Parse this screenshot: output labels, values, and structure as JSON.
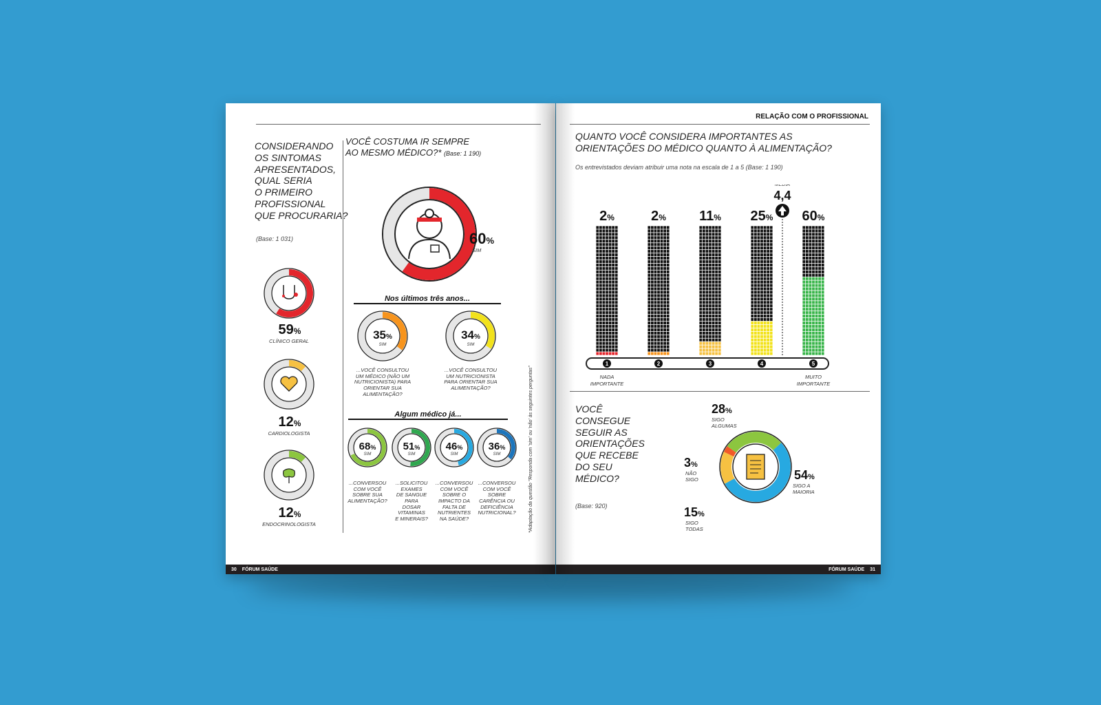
{
  "left_page": {
    "footer_page": "30",
    "footer_title": "FÓRUM SAÚDE",
    "q1": {
      "lines": [
        "CONSIDERANDO",
        "OS SINTOMAS",
        "APRESENTADOS,",
        "QUAL SERIA",
        "O PRIMEIRO",
        "PROFISSIONAL",
        "QUE PROCURARIA?"
      ],
      "base": "(Base: 1 031)"
    },
    "specialists": [
      {
        "value": "59",
        "unit": "%",
        "label": "CLÍNICO GERAL",
        "fraction": 0.59,
        "color": "#e3262c",
        "icon": "stethoscope-icon"
      },
      {
        "value": "12",
        "unit": "%",
        "label": "CARDIOLOGISTA",
        "fraction": 0.12,
        "color": "#f6c142",
        "icon": "heart-icon"
      },
      {
        "value": "12",
        "unit": "%",
        "label": "ENDOCRINOLOGISTA",
        "fraction": 0.12,
        "color": "#8cc63f",
        "icon": "thyroid-icon"
      }
    ],
    "q2": {
      "line1": "VOCÊ COSTUMA IR SEMPRE",
      "line2": "AO MESMO MÉDICO?*",
      "base": "(Base: 1 190)",
      "value": "60",
      "unit": "%",
      "label": "SIM",
      "fraction": 0.6,
      "color": "#e3262c",
      "icon": "doctor-icon"
    },
    "sub1": {
      "title": "Nos últimos três anos...",
      "items": [
        {
          "value": "35",
          "unit": "%",
          "label": "SIM",
          "fraction": 0.35,
          "color": "#f7941d",
          "caption": [
            "...VOCÊ CONSULTOU",
            "UM MÉDICO (NÃO UM",
            "NUTRICIONISTA) PARA",
            "ORIENTAR SUA ALIMENTAÇÃO?"
          ]
        },
        {
          "value": "34",
          "unit": "%",
          "label": "SIM",
          "fraction": 0.34,
          "color": "#f2e21b",
          "caption": [
            "...VOCÊ CONSULTOU",
            "UM NUTRICIONISTA",
            "PARA ORIENTAR SUA",
            "ALIMENTAÇÃO?"
          ]
        }
      ]
    },
    "sub2": {
      "title": "Algum médico já...",
      "items": [
        {
          "value": "68",
          "unit": "%",
          "label": "SIM",
          "fraction": 0.68,
          "color": "#8cc63f",
          "caption": [
            "...CONVERSOU",
            "COM VOCÊ",
            "SOBRE SUA",
            "ALIMENTAÇÃO?"
          ]
        },
        {
          "value": "51",
          "unit": "%",
          "label": "SIM",
          "fraction": 0.51,
          "color": "#2fa84f",
          "caption": [
            "...SOLICITOU",
            "EXAMES",
            "DE SANGUE",
            "PARA",
            "DOSAR",
            "VITAMINAS",
            "E MINERAIS?"
          ]
        },
        {
          "value": "46",
          "unit": "%",
          "label": "SIM",
          "fraction": 0.46,
          "color": "#27a9e1",
          "caption": [
            "...CONVERSOU",
            "COM VOCÊ",
            "SOBRE O",
            "IMPACTO DA",
            "FALTA DE",
            "NUTRIENTES",
            "NA SAÚDE?"
          ]
        },
        {
          "value": "36",
          "unit": "%",
          "label": "SIM",
          "fraction": 0.36,
          "color": "#1c75bc",
          "caption": [
            "...CONVERSOU",
            "COM VOCÊ",
            "SOBRE",
            "CARÊNCIA OU",
            "DEFICIÊNCIA",
            "NUTRICIONAL?"
          ]
        }
      ]
    },
    "side_note": "*Adaptação da questão \"Responda com 'sim' ou 'não' às seguintes perguntas\""
  },
  "right_page": {
    "section_tag": "RELAÇÃO COM O PROFISSIONAL",
    "footer_page": "31",
    "footer_title": "FÓRUM SAÚDE",
    "q3": {
      "line1": "QUANTO VOCÊ CONSIDERA IMPORTANTES AS",
      "line2": "ORIENTAÇÕES DO MÉDICO QUANTO À ALIMENTAÇÃO?",
      "sub": "Os entrevistados deviam atribuir uma nota na escala de 1 a 5 (Base: 1 190)"
    },
    "media": {
      "label": "MÉDIA",
      "value": "4,4"
    },
    "scale_low": [
      "NADA",
      "IMPORTANTE"
    ],
    "scale_high": [
      "MUITO",
      "IMPORTANTE"
    ],
    "chart_data": {
      "type": "bar",
      "categories": [
        "1",
        "2",
        "3",
        "4",
        "5"
      ],
      "values": [
        2,
        2,
        11,
        25,
        60
      ],
      "value_labels": [
        "2%",
        "2%",
        "11%",
        "25%",
        "60%"
      ],
      "colors": [
        "#e3262c",
        "#f7941d",
        "#f6c142",
        "#f2e21b",
        "#39b54a"
      ],
      "ylim": [
        0,
        100
      ],
      "mean": 4.4
    },
    "q4": {
      "lines": [
        "VOCÊ",
        "CONSEGUE",
        "SEGUIR AS",
        "ORIENTAÇÕES",
        "QUE RECEBE",
        "DO SEU",
        "MÉDICO?"
      ],
      "base": "(Base: 920)",
      "segments": [
        {
          "value": "28",
          "unit": "%",
          "label": [
            "SIGO",
            "ALGUMAS"
          ],
          "fraction": 0.28,
          "color": "#8cc63f"
        },
        {
          "value": "54",
          "unit": "%",
          "label": [
            "SIGO A",
            "MAIORIA"
          ],
          "fraction": 0.54,
          "color": "#27a9e1"
        },
        {
          "value": "15",
          "unit": "%",
          "label": [
            "SIGO",
            "TODAS"
          ],
          "fraction": 0.15,
          "color": "#f6c142"
        },
        {
          "value": "3",
          "unit": "%",
          "label": [
            "NÃO",
            "SIGO"
          ],
          "fraction": 0.03,
          "color": "#f15a29"
        }
      ],
      "icon": "scroll-icon"
    }
  }
}
